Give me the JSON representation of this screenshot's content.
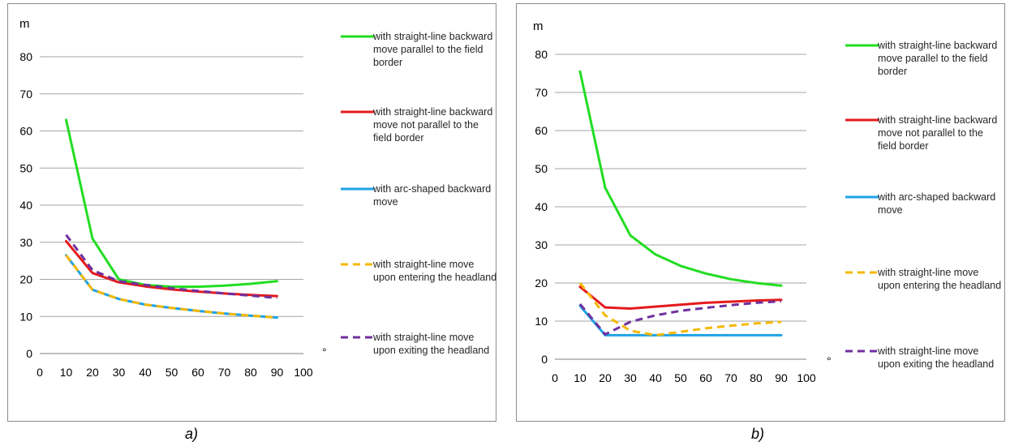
{
  "chart_data": [
    {
      "type": "line",
      "panel_label": "a)",
      "ylabel": "m",
      "xlabel": "°",
      "x": [
        10,
        20,
        30,
        40,
        50,
        60,
        70,
        80,
        90
      ],
      "xlim": [
        0,
        100
      ],
      "ylim": [
        0,
        80
      ],
      "xticks": [
        "0",
        "10",
        "20",
        "30",
        "40",
        "50",
        "60",
        "70",
        "80",
        "90",
        "100"
      ],
      "yticks": [
        "0",
        "10",
        "20",
        "30",
        "40",
        "50",
        "60",
        "70",
        "80"
      ],
      "grid": "horizontal",
      "legend_position": "right",
      "series": [
        {
          "name": "with straight-line backward move parallel to the field border",
          "color": "#22dd22",
          "dash": "solid",
          "values": [
            63,
            31,
            20,
            18.5,
            18,
            18,
            18.3,
            18.8,
            19.5
          ]
        },
        {
          "name": "with straight-line backward move not parallel to the field border",
          "color": "#e41a1c",
          "dash": "solid",
          "values": [
            30.3,
            21.7,
            19.2,
            18.1,
            17.3,
            16.7,
            16.2,
            15.8,
            15.5
          ]
        },
        {
          "name": "with arc-shaped backward move",
          "color": "#1fa2e6",
          "dash": "solid",
          "values": [
            26.5,
            17.2,
            14.7,
            13.2,
            12.3,
            11.5,
            10.8,
            10.2,
            9.7
          ]
        },
        {
          "name": "with straight-line move upon entering the headland",
          "color": "#f5b800",
          "dash": "dashed",
          "values": [
            26.5,
            17.2,
            14.7,
            13.2,
            12.3,
            11.5,
            10.8,
            10.2,
            9.7
          ]
        },
        {
          "name": "with straight-line move upon exiting the headland",
          "color": "#7030a0",
          "dash": "dashed",
          "values": [
            32,
            22.5,
            19.5,
            18.5,
            17.6,
            16.9,
            16.2,
            15.6,
            15
          ]
        }
      ]
    },
    {
      "type": "line",
      "panel_label": "b)",
      "ylabel": "m",
      "xlabel": "°",
      "x": [
        10,
        20,
        30,
        40,
        50,
        60,
        70,
        80,
        90
      ],
      "xlim": [
        0,
        100
      ],
      "ylim": [
        0,
        80
      ],
      "xticks": [
        "0",
        "10",
        "20",
        "30",
        "40",
        "50",
        "60",
        "70",
        "80",
        "90",
        "100"
      ],
      "yticks": [
        "0",
        "10",
        "20",
        "30",
        "40",
        "50",
        "60",
        "70",
        "80"
      ],
      "grid": "horizontal",
      "legend_position": "right",
      "series": [
        {
          "name": "with straight-line backward move parallel to the field border",
          "color": "#22dd22",
          "dash": "solid",
          "values": [
            75.5,
            45,
            32.5,
            27.5,
            24.5,
            22.5,
            21,
            20,
            19.3
          ]
        },
        {
          "name": "with straight-line backward move not parallel to the field border",
          "color": "#e41a1c",
          "dash": "solid",
          "values": [
            19,
            13.6,
            13.3,
            13.8,
            14.3,
            14.8,
            15.1,
            15.4,
            15.6
          ]
        },
        {
          "name": "with arc-shaped backward move",
          "color": "#1fa2e6",
          "dash": "solid",
          "values": [
            14,
            6.3,
            6.3,
            6.3,
            6.3,
            6.3,
            6.3,
            6.3,
            6.3
          ]
        },
        {
          "name": "with straight-line move upon entering the headland",
          "color": "#f5b800",
          "dash": "dashed",
          "values": [
            20,
            11.5,
            7.5,
            6.3,
            7.2,
            8.1,
            8.8,
            9.4,
            9.8
          ]
        },
        {
          "name": "with straight-line move upon exiting the headland",
          "color": "#7030a0",
          "dash": "dashed",
          "values": [
            14.5,
            6.5,
            9.8,
            11.5,
            12.7,
            13.5,
            14.2,
            14.8,
            15.2
          ]
        }
      ]
    }
  ]
}
